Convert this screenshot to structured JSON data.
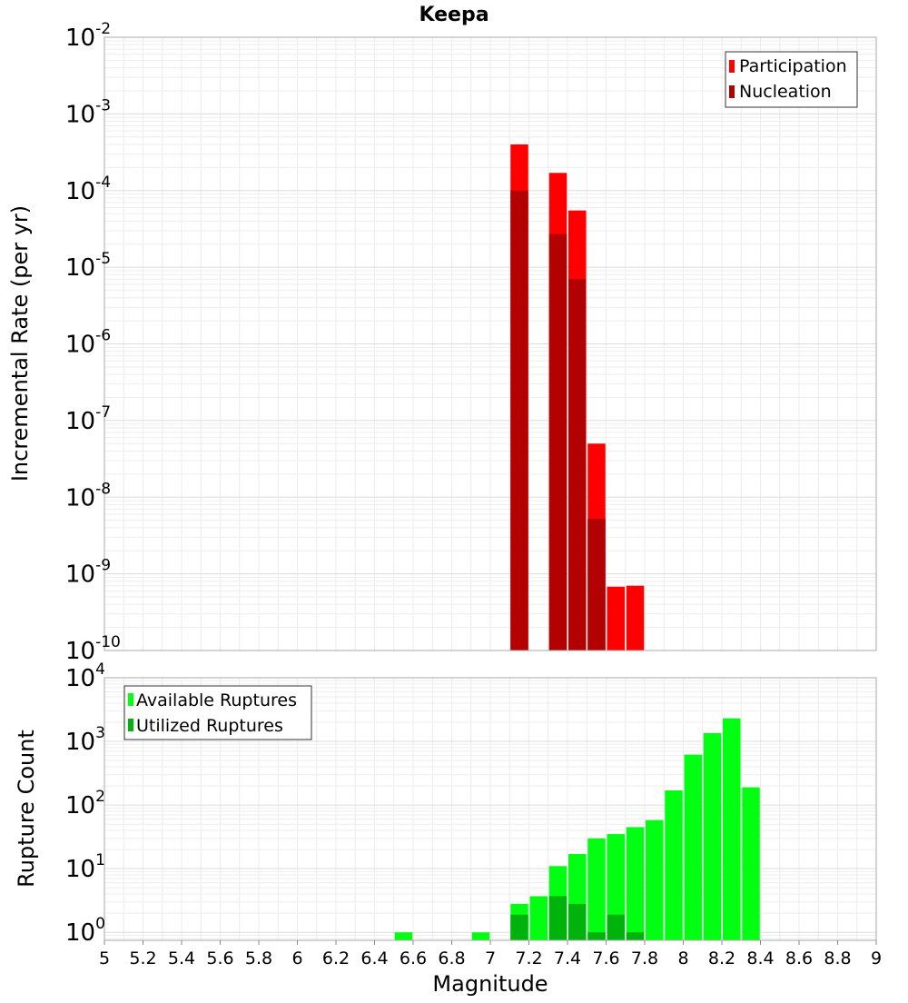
{
  "chart_data": [
    {
      "type": "bar",
      "title": "Keepa",
      "xlabel": "",
      "ylabel": "Incremental Rate (per yr)",
      "yscale": "log",
      "ylim": [
        1e-10,
        0.01
      ],
      "xlim": [
        5,
        9
      ],
      "yticks": [
        {
          "base": "10",
          "exp": "-10"
        },
        {
          "base": "10",
          "exp": "-9"
        },
        {
          "base": "10",
          "exp": "-8"
        },
        {
          "base": "10",
          "exp": "-7"
        },
        {
          "base": "10",
          "exp": "-6"
        },
        {
          "base": "10",
          "exp": "-5"
        },
        {
          "base": "10",
          "exp": "-4"
        },
        {
          "base": "10",
          "exp": "-3"
        },
        {
          "base": "10",
          "exp": "-2"
        }
      ],
      "legend_position": "top-right",
      "grid": true,
      "series": [
        {
          "name": "Participation",
          "color": "#ff0000",
          "points": [
            [
              7.15,
              0.0004
            ],
            [
              7.35,
              0.00017
            ],
            [
              7.45,
              5.5e-05
            ],
            [
              7.55,
              5e-08
            ],
            [
              7.65,
              6.8e-10
            ],
            [
              7.75,
              7e-10
            ]
          ]
        },
        {
          "name": "Nucleation",
          "color": "#b30000",
          "points": [
            [
              7.15,
              0.0001
            ],
            [
              7.35,
              2.7e-05
            ],
            [
              7.45,
              7e-06
            ],
            [
              7.55,
              5.2e-09
            ]
          ]
        }
      ]
    },
    {
      "type": "bar",
      "title": "",
      "xlabel": "Magnitude",
      "ylabel": "Rupture Count",
      "yscale": "log",
      "ylim": [
        0.75,
        10000
      ],
      "xlim": [
        5,
        9
      ],
      "xticks": [
        "5",
        "5.2",
        "5.4",
        "5.6",
        "5.8",
        "6",
        "6.2",
        "6.4",
        "6.6",
        "6.8",
        "7",
        "7.2",
        "7.4",
        "7.6",
        "7.8",
        "8",
        "8.2",
        "8.4",
        "8.6",
        "8.8",
        "9"
      ],
      "yticks": [
        {
          "base": "10",
          "exp": "0"
        },
        {
          "base": "10",
          "exp": "1"
        },
        {
          "base": "10",
          "exp": "2"
        },
        {
          "base": "10",
          "exp": "3"
        },
        {
          "base": "10",
          "exp": "4"
        }
      ],
      "legend_position": "top-left",
      "grid": true,
      "series": [
        {
          "name": "Available Ruptures",
          "color": "#00ff11",
          "points": [
            [
              6.55,
              1
            ],
            [
              6.95,
              1
            ],
            [
              7.15,
              2.8
            ],
            [
              7.25,
              3.7
            ],
            [
              7.35,
              11
            ],
            [
              7.45,
              17
            ],
            [
              7.55,
              30
            ],
            [
              7.65,
              35
            ],
            [
              7.75,
              45
            ],
            [
              7.85,
              58
            ],
            [
              7.95,
              170
            ],
            [
              8.05,
              620
            ],
            [
              8.15,
              1350
            ],
            [
              8.25,
              2300
            ],
            [
              8.35,
              190
            ]
          ]
        },
        {
          "name": "Utilized Ruptures",
          "color": "#00b30c",
          "points": [
            [
              7.15,
              1.9
            ],
            [
              7.35,
              3.7
            ],
            [
              7.45,
              2.8
            ],
            [
              7.55,
              1
            ],
            [
              7.65,
              1.9
            ],
            [
              7.75,
              1
            ]
          ]
        }
      ]
    }
  ]
}
